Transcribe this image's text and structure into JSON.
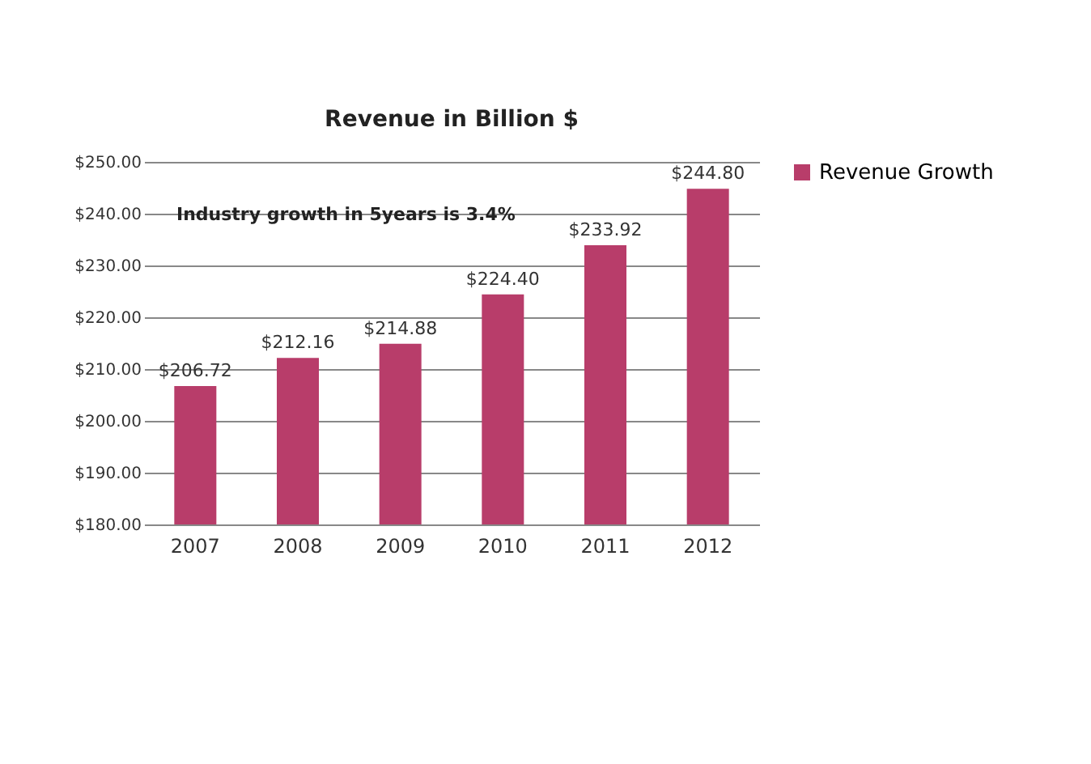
{
  "chart_data": {
    "type": "bar",
    "title": "Revenue in Billion $",
    "categories": [
      "2007",
      "2008",
      "2009",
      "2010",
      "2011",
      "2012"
    ],
    "series": [
      {
        "name": "Revenue Growth",
        "color": "#b83d6a",
        "values": [
          206.72,
          212.16,
          214.88,
          224.4,
          233.92,
          244.8
        ]
      }
    ],
    "ylim": [
      180,
      250
    ],
    "yticks": [
      {
        "value": 180,
        "label": "$180.00"
      },
      {
        "value": 190,
        "label": "$190.00"
      },
      {
        "value": 200,
        "label": "$200.00"
      },
      {
        "value": 210,
        "label": "$210.00"
      },
      {
        "value": 220,
        "label": "$220.00"
      },
      {
        "value": 230,
        "label": "$230.00"
      },
      {
        "value": 240,
        "label": "$240.00"
      },
      {
        "value": 250,
        "label": "$250.00"
      }
    ],
    "value_labels": [
      "$206.72",
      "$212.16",
      "$214.88",
      "$224.40",
      "$233.92",
      "$244.80"
    ],
    "grid": "y",
    "legend": "right",
    "annotations": [
      "Industry growth in 5years is 3.4%"
    ]
  }
}
